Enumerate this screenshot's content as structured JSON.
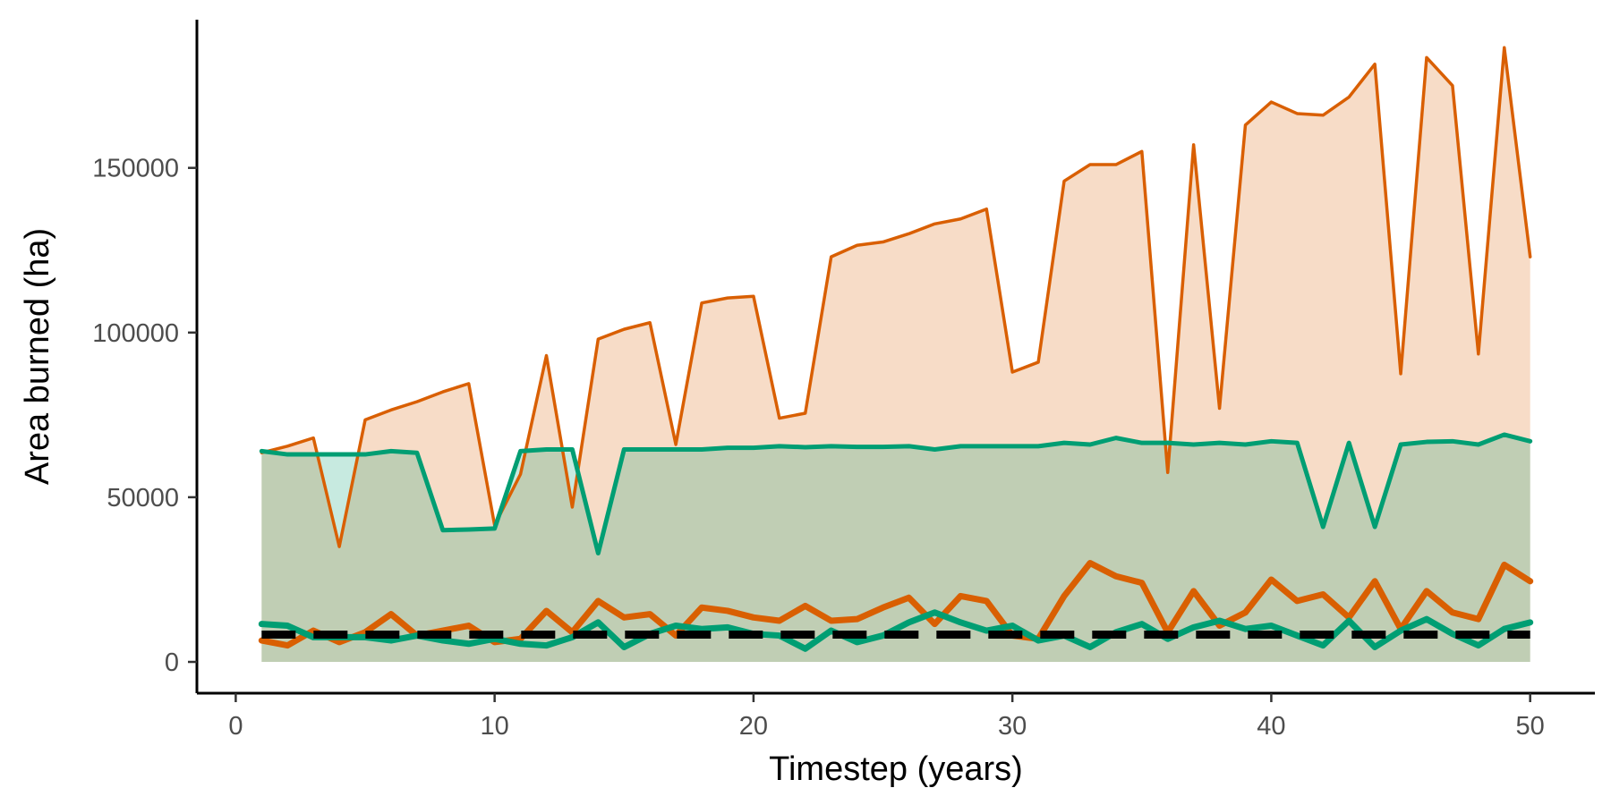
{
  "chart_data": {
    "type": "line",
    "xlabel": "Timestep (years)",
    "ylabel": "Area burned (ha)",
    "xlim": [
      -1.5,
      52.5
    ],
    "ylim": [
      -9500,
      195000
    ],
    "x_ticks": [
      0,
      10,
      20,
      30,
      40,
      50
    ],
    "y_ticks": [
      0,
      50000,
      100000,
      150000
    ],
    "grid": false,
    "legend": "none",
    "colors": {
      "orange": "#d95f02",
      "green": "#009e73",
      "dashed": "#000000"
    },
    "x": [
      1,
      2,
      3,
      4,
      5,
      6,
      7,
      8,
      9,
      10,
      11,
      12,
      13,
      14,
      15,
      16,
      17,
      18,
      19,
      20,
      21,
      22,
      23,
      24,
      25,
      26,
      27,
      28,
      29,
      30,
      31,
      32,
      33,
      34,
      35,
      36,
      37,
      38,
      39,
      40,
      41,
      42,
      43,
      44,
      45,
      46,
      47,
      48,
      49,
      50
    ],
    "series": [
      {
        "role": "orange-max",
        "color": "#d95f02",
        "width": 3.5,
        "fill": true,
        "values": [
          63500,
          65500,
          68000,
          35000,
          73500,
          76500,
          79000,
          82000,
          84500,
          41500,
          57000,
          93000,
          47000,
          98000,
          101000,
          103000,
          66000,
          109000,
          110500,
          111000,
          74000,
          75500,
          123000,
          126500,
          127500,
          130000,
          133000,
          134500,
          137500,
          88000,
          91000,
          146000,
          151000,
          151000,
          155000,
          57500,
          157000,
          77000,
          163000,
          170000,
          166500,
          166000,
          171500,
          181500,
          87500,
          183500,
          175000,
          93500,
          186500,
          123000
        ]
      },
      {
        "role": "green-max",
        "color": "#009e73",
        "width": 5,
        "fill": true,
        "values": [
          64000,
          63000,
          63000,
          63000,
          63000,
          64000,
          63500,
          40000,
          40200,
          40500,
          64000,
          64500,
          64500,
          33000,
          64500,
          64500,
          64500,
          64500,
          65000,
          65000,
          65500,
          65200,
          65500,
          65300,
          65300,
          65500,
          64500,
          65500,
          65500,
          65500,
          65500,
          66500,
          66000,
          68000,
          66500,
          66500,
          66000,
          66500,
          66000,
          67000,
          66500,
          41000,
          66500,
          41000,
          66000,
          66800,
          67000,
          66000,
          69000,
          67000
        ]
      },
      {
        "role": "orange-mean",
        "color": "#d95f02",
        "width": 7,
        "fill": false,
        "values": [
          6500,
          5000,
          9500,
          6000,
          9000,
          14500,
          8000,
          9500,
          11000,
          6000,
          7000,
          15500,
          9000,
          18500,
          13500,
          14500,
          8000,
          16500,
          15500,
          13500,
          12500,
          17000,
          12500,
          13000,
          16500,
          19500,
          11500,
          20000,
          18500,
          8000,
          7000,
          20000,
          30000,
          26000,
          24000,
          9000,
          21500,
          11000,
          15000,
          25000,
          18500,
          20500,
          13500,
          24500,
          10000,
          21500,
          15000,
          13000,
          29500,
          24500
        ]
      },
      {
        "role": "green-mean",
        "color": "#009e73",
        "width": 7,
        "fill": false,
        "values": [
          11500,
          11000,
          7500,
          7500,
          7500,
          6500,
          8000,
          6500,
          5500,
          7000,
          5500,
          5000,
          7500,
          12000,
          4500,
          8500,
          11000,
          10000,
          10500,
          8500,
          8000,
          4000,
          9500,
          6000,
          8000,
          12000,
          15000,
          12000,
          9500,
          11000,
          6500,
          8000,
          4500,
          9000,
          11500,
          7000,
          10500,
          12500,
          10000,
          11000,
          8000,
          5000,
          12500,
          4500,
          9500,
          13000,
          8500,
          5000,
          10000,
          12000
        ]
      },
      {
        "role": "reference",
        "color": "#000000",
        "width": 9,
        "dashed": true,
        "fill": false,
        "values": [
          8300,
          8300,
          8300,
          8300,
          8300,
          8300,
          8300,
          8300,
          8300,
          8300,
          8300,
          8300,
          8300,
          8300,
          8300,
          8300,
          8300,
          8300,
          8300,
          8300,
          8300,
          8300,
          8300,
          8300,
          8300,
          8300,
          8300,
          8300,
          8300,
          8300,
          8300,
          8300,
          8300,
          8300,
          8300,
          8300,
          8300,
          8300,
          8300,
          8300,
          8300,
          8300,
          8300,
          8300,
          8300,
          8300,
          8300,
          8300,
          8300,
          8300
        ]
      }
    ]
  }
}
